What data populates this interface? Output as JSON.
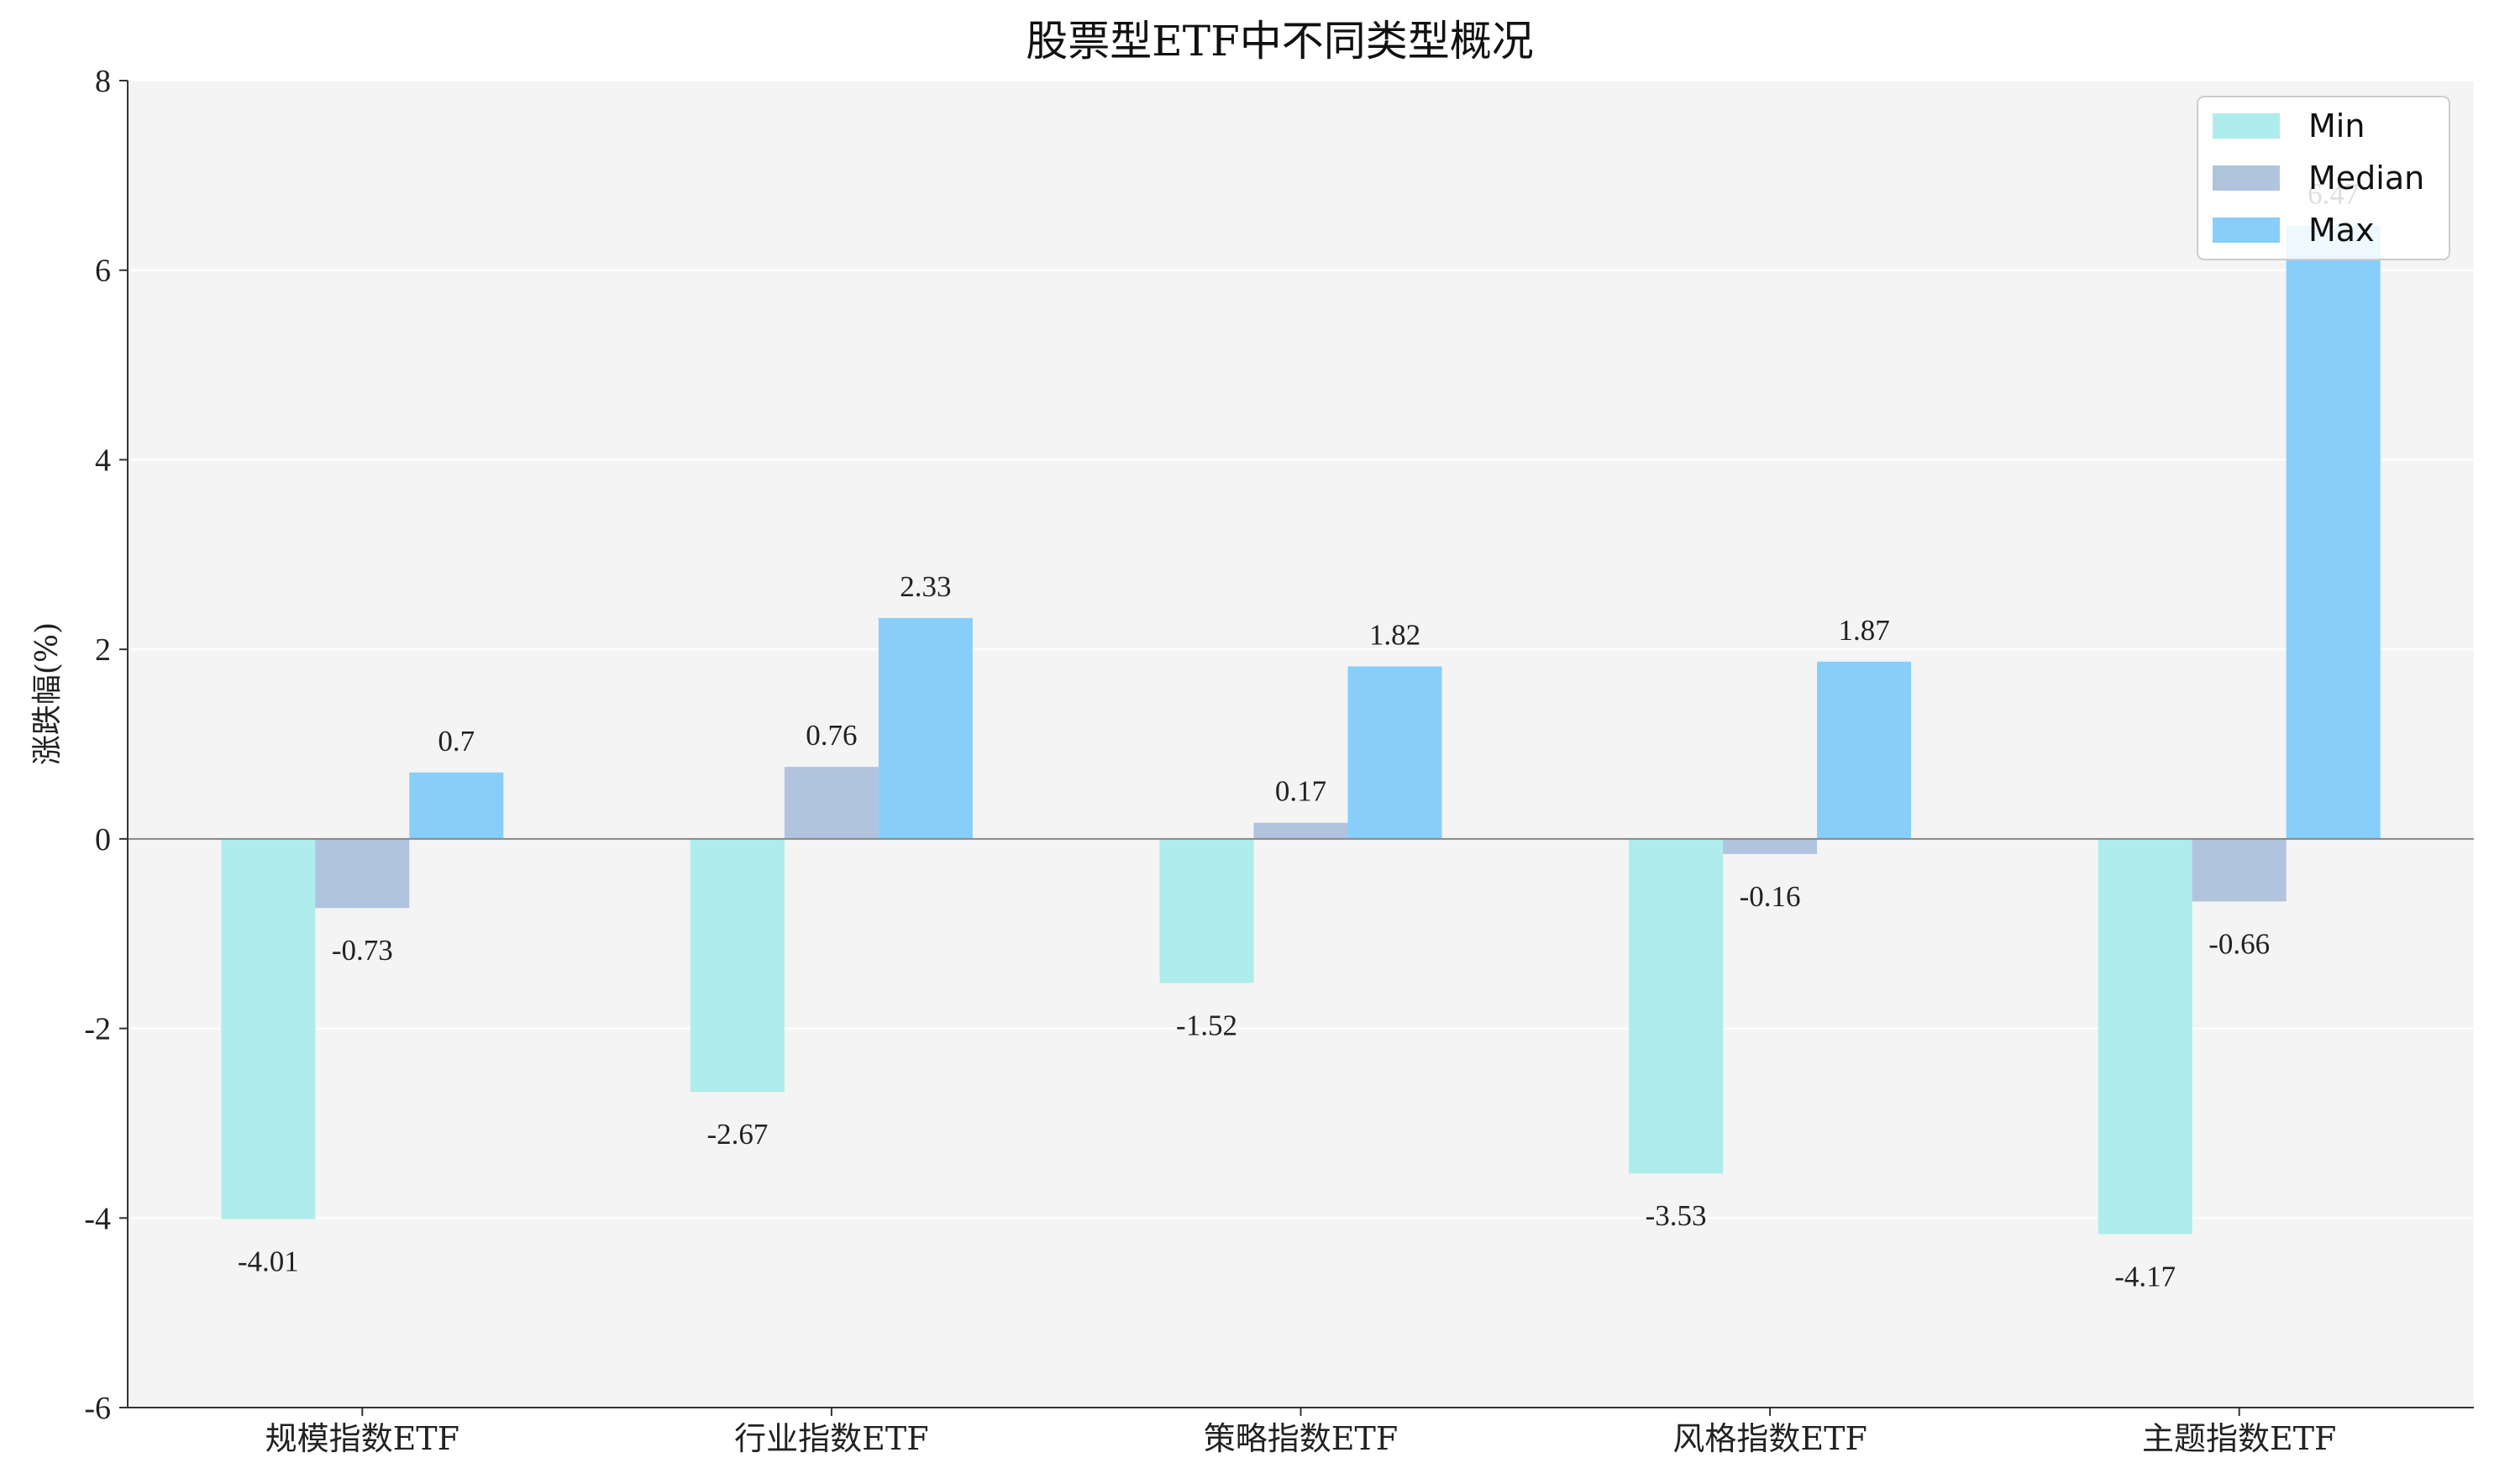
{
  "chart_data": {
    "type": "bar",
    "title": "股票型ETF中不同类型概况",
    "xlabel": "",
    "ylabel": "涨跌幅(%)",
    "categories": [
      "规模指数ETF",
      "行业指数ETF",
      "策略指数ETF",
      "风格指数ETF",
      "主题指数ETF"
    ],
    "series": [
      {
        "name": "Min",
        "color": "#afecec",
        "values": [
          -4.01,
          -2.67,
          -1.52,
          -3.53,
          -4.17
        ],
        "labels": [
          "-4.01",
          "-2.67",
          "-1.52",
          "-3.53",
          "-4.17"
        ]
      },
      {
        "name": "Median",
        "color": "#b0c4de",
        "values": [
          -0.73,
          0.76,
          0.17,
          -0.16,
          -0.66
        ],
        "labels": [
          "-0.73",
          "0.76",
          "0.17",
          "-0.16",
          "-0.66"
        ]
      },
      {
        "name": "Max",
        "color": "#87cefa",
        "values": [
          0.7,
          2.33,
          1.82,
          1.87,
          6.47
        ],
        "labels": [
          "0.7",
          "2.33",
          "1.82",
          "1.87",
          "6.47"
        ]
      }
    ],
    "ylim": [
      -6,
      8
    ],
    "yticks": [
      {
        "value": -6,
        "label": "-6"
      },
      {
        "value": -4,
        "label": "-4"
      },
      {
        "value": -2,
        "label": "-2"
      },
      {
        "value": 0,
        "label": "0"
      },
      {
        "value": 2,
        "label": "2"
      },
      {
        "value": 4,
        "label": "4"
      },
      {
        "value": 6,
        "label": "6"
      },
      {
        "value": 8,
        "label": "8"
      }
    ],
    "grid": true,
    "legend_position": "top-right",
    "background_color": "#f4f4f4",
    "zero_line_color": "#888888"
  }
}
